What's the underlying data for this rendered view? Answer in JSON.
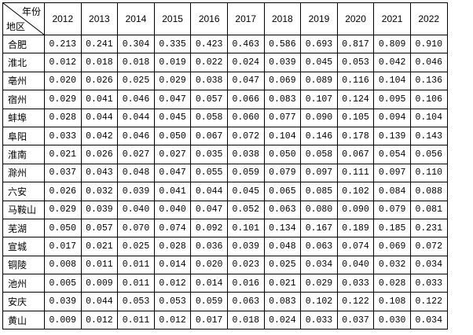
{
  "table": {
    "corner_top": "年份",
    "corner_bottom": "地区",
    "years": [
      "2012",
      "2013",
      "2014",
      "2015",
      "2016",
      "2017",
      "2018",
      "2019",
      "2020",
      "2021",
      "2022"
    ],
    "rows": [
      {
        "region": "合肥",
        "values": [
          "0.213",
          "0.241",
          "0.304",
          "0.335",
          "0.423",
          "0.463",
          "0.586",
          "0.693",
          "0.817",
          "0.809",
          "0.910"
        ]
      },
      {
        "region": "淮北",
        "values": [
          "0.012",
          "0.018",
          "0.018",
          "0.019",
          "0.022",
          "0.024",
          "0.039",
          "0.045",
          "0.053",
          "0.042",
          "0.046"
        ]
      },
      {
        "region": "亳州",
        "values": [
          "0.020",
          "0.026",
          "0.025",
          "0.029",
          "0.038",
          "0.047",
          "0.069",
          "0.089",
          "0.116",
          "0.104",
          "0.136"
        ]
      },
      {
        "region": "宿州",
        "values": [
          "0.029",
          "0.041",
          "0.046",
          "0.047",
          "0.057",
          "0.066",
          "0.083",
          "0.107",
          "0.124",
          "0.095",
          "0.106"
        ]
      },
      {
        "region": "蚌埠",
        "values": [
          "0.028",
          "0.044",
          "0.044",
          "0.045",
          "0.058",
          "0.060",
          "0.077",
          "0.090",
          "0.105",
          "0.094",
          "0.104"
        ]
      },
      {
        "region": "阜阳",
        "values": [
          "0.033",
          "0.042",
          "0.046",
          "0.050",
          "0.067",
          "0.072",
          "0.104",
          "0.146",
          "0.178",
          "0.139",
          "0.143"
        ]
      },
      {
        "region": "淮南",
        "values": [
          "0.021",
          "0.026",
          "0.027",
          "0.027",
          "0.035",
          "0.038",
          "0.050",
          "0.058",
          "0.067",
          "0.054",
          "0.056"
        ]
      },
      {
        "region": "滁州",
        "values": [
          "0.037",
          "0.043",
          "0.048",
          "0.047",
          "0.055",
          "0.059",
          "0.079",
          "0.097",
          "0.111",
          "0.097",
          "0.110"
        ]
      },
      {
        "region": "六安",
        "values": [
          "0.026",
          "0.032",
          "0.039",
          "0.041",
          "0.044",
          "0.045",
          "0.065",
          "0.085",
          "0.102",
          "0.084",
          "0.088"
        ]
      },
      {
        "region": "马鞍山",
        "values": [
          "0.029",
          "0.039",
          "0.040",
          "0.040",
          "0.047",
          "0.052",
          "0.063",
          "0.080",
          "0.090",
          "0.079",
          "0.081"
        ]
      },
      {
        "region": "芜湖",
        "values": [
          "0.050",
          "0.057",
          "0.070",
          "0.074",
          "0.092",
          "0.101",
          "0.134",
          "0.167",
          "0.189",
          "0.185",
          "0.231"
        ]
      },
      {
        "region": "宣城",
        "values": [
          "0.017",
          "0.021",
          "0.025",
          "0.028",
          "0.036",
          "0.039",
          "0.048",
          "0.063",
          "0.074",
          "0.069",
          "0.072"
        ]
      },
      {
        "region": "铜陵",
        "values": [
          "0.008",
          "0.011",
          "0.011",
          "0.014",
          "0.020",
          "0.023",
          "0.025",
          "0.034",
          "0.040",
          "0.032",
          "0.034"
        ]
      },
      {
        "region": "池州",
        "values": [
          "0.005",
          "0.009",
          "0.011",
          "0.012",
          "0.014",
          "0.016",
          "0.021",
          "0.029",
          "0.033",
          "0.028",
          "0.033"
        ]
      },
      {
        "region": "安庆",
        "values": [
          "0.039",
          "0.044",
          "0.053",
          "0.053",
          "0.059",
          "0.063",
          "0.083",
          "0.102",
          "0.122",
          "0.108",
          "0.122"
        ]
      },
      {
        "region": "黄山",
        "values": [
          "0.009",
          "0.012",
          "0.011",
          "0.012",
          "0.017",
          "0.018",
          "0.024",
          "0.033",
          "0.037",
          "0.030",
          "0.034"
        ]
      }
    ]
  }
}
